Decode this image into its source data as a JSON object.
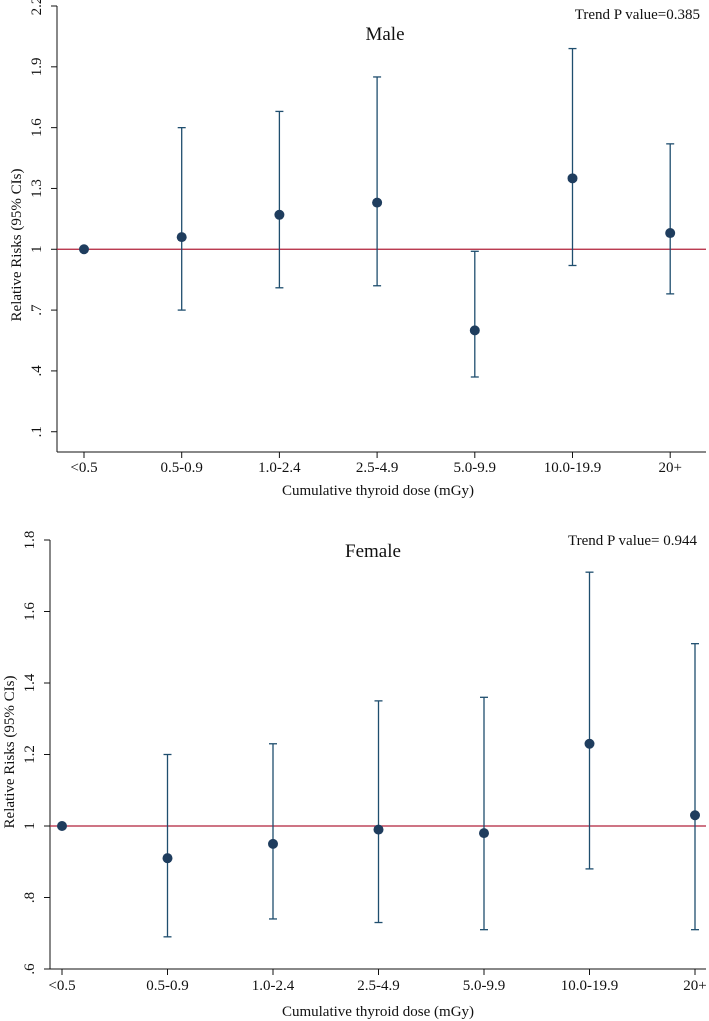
{
  "colors": {
    "marker": "#1f3d5e",
    "errorbar": "#1f4e6e",
    "reference_line": "#b0203a",
    "axis": "#111111",
    "female_title": "#24386b"
  },
  "chart_data": [
    {
      "type": "scatter",
      "title": "Male",
      "annotation": "Trend P value=0.385",
      "xlabel": "Cumulative thyroid dose (mGy)",
      "ylabel": "Relative Risks (95% CIs)",
      "categories": [
        "<0.5",
        "0.5-0.9",
        "1.0-2.4",
        "2.5-4.9",
        "5.0-9.9",
        "10.0-19.9",
        "20+"
      ],
      "values": [
        1.0,
        1.06,
        1.17,
        1.23,
        0.6,
        1.35,
        1.08
      ],
      "ci_lower": [
        null,
        0.7,
        0.81,
        0.82,
        0.37,
        0.92,
        0.78
      ],
      "ci_upper": [
        null,
        1.6,
        1.68,
        1.85,
        0.99,
        1.99,
        1.52
      ],
      "reference_line": 1,
      "ylim": [
        0,
        2.2
      ],
      "yticks": [
        0.1,
        0.4,
        0.7,
        1,
        1.3,
        1.6,
        1.9,
        2.2
      ],
      "ytick_labels": [
        ".1",
        ".4",
        ".7",
        "1",
        "1.3",
        "1.6",
        "1.9",
        "2.2"
      ]
    },
    {
      "type": "scatter",
      "title": "Female",
      "annotation": "Trend P value= 0.944",
      "xlabel": "Cumulative thyroid dose (mGy)",
      "ylabel": "Relative Risks (95% CIs)",
      "categories": [
        "<0.5",
        "0.5-0.9",
        "1.0-2.4",
        "2.5-4.9",
        "5.0-9.9",
        "10.0-19.9",
        "20+"
      ],
      "values": [
        1.0,
        0.91,
        0.95,
        0.99,
        0.98,
        1.23,
        1.03
      ],
      "ci_lower": [
        null,
        0.69,
        0.74,
        0.73,
        0.71,
        0.88,
        0.71
      ],
      "ci_upper": [
        null,
        1.2,
        1.23,
        1.35,
        1.36,
        1.71,
        1.51
      ],
      "reference_line": 1,
      "ylim": [
        0.6,
        1.8
      ],
      "yticks": [
        0.6,
        0.8,
        1,
        1.2,
        1.4,
        1.6,
        1.8
      ],
      "ytick_labels": [
        ".6",
        ".8",
        "1",
        "1.2",
        "1.4",
        "1.6",
        "1.8"
      ]
    }
  ]
}
